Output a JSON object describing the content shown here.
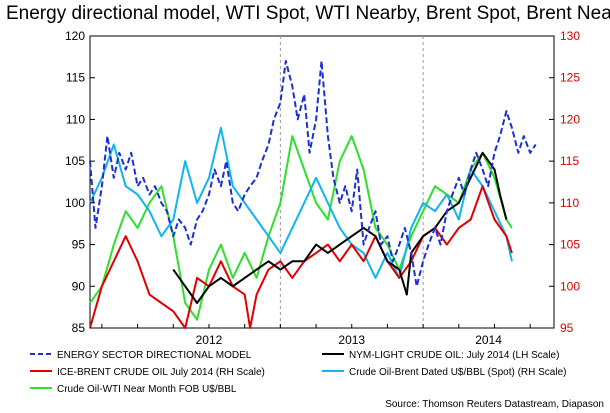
{
  "chart_data": {
    "type": "line",
    "title": "Energy directional model, WTI Spot, WTI Nearby, Brent Spot, Brent Nearby",
    "source": "Source: Thomson Reuters Datastream, Diapason",
    "grid": false,
    "legend_position": "bottom",
    "x_tick_labels": [
      "2012",
      "2013",
      "2014"
    ],
    "y_left": {
      "min": 85,
      "max": 120,
      "ticks": [
        "85",
        "90",
        "95",
        "100",
        "105",
        "110",
        "115",
        "120"
      ],
      "color": "#000000"
    },
    "y_right": {
      "min": 95,
      "max": 130,
      "ticks": [
        "95",
        "100",
        "105",
        "110",
        "115",
        "120",
        "125",
        "130"
      ],
      "color": "#e00000"
    },
    "x_range": [
      "2011-09",
      "2014-12"
    ],
    "series": [
      {
        "name": "ENERGY SECTOR DIRECTIONAL MODEL",
        "axis": "left",
        "color": "#1a2fd6",
        "dash": true,
        "width": 2,
        "points": [
          [
            "2011-09",
            105
          ],
          [
            "2011-09-15",
            97
          ],
          [
            "2011-10",
            102
          ],
          [
            "2011-10-15",
            108
          ],
          [
            "2011-11",
            103
          ],
          [
            "2011-11-15",
            106
          ],
          [
            "2011-12",
            104
          ],
          [
            "2011-12-15",
            106
          ],
          [
            "2012-01",
            102
          ],
          [
            "2012-01-15",
            103
          ],
          [
            "2012-02",
            101
          ],
          [
            "2012-02-15",
            102
          ],
          [
            "2012-03",
            100
          ],
          [
            "2012-03-15",
            99
          ],
          [
            "2012-04",
            96
          ],
          [
            "2012-04-15",
            98
          ],
          [
            "2012-05",
            97
          ],
          [
            "2012-05-15",
            95
          ],
          [
            "2012-06",
            98
          ],
          [
            "2012-06-15",
            99
          ],
          [
            "2012-07",
            101
          ],
          [
            "2012-07-15",
            104
          ],
          [
            "2012-08",
            102
          ],
          [
            "2012-08-15",
            105
          ],
          [
            "2012-09",
            100
          ],
          [
            "2012-09-15",
            99
          ],
          [
            "2012-10",
            101
          ],
          [
            "2012-10-15",
            102
          ],
          [
            "2012-11",
            103
          ],
          [
            "2012-11-15",
            105
          ],
          [
            "2012-12",
            107
          ],
          [
            "2012-12-15",
            110
          ],
          [
            "2013-01",
            112
          ],
          [
            "2013-01-15",
            117
          ],
          [
            "2013-02",
            114
          ],
          [
            "2013-02-15",
            110
          ],
          [
            "2013-03",
            113
          ],
          [
            "2013-03-15",
            106
          ],
          [
            "2013-04",
            110
          ],
          [
            "2013-04-15",
            117
          ],
          [
            "2013-05",
            108
          ],
          [
            "2013-05-15",
            103
          ],
          [
            "2013-06",
            100
          ],
          [
            "2013-06-15",
            102
          ],
          [
            "2013-07",
            99
          ],
          [
            "2013-07-15",
            104
          ],
          [
            "2013-08",
            95
          ],
          [
            "2013-08-15",
            97
          ],
          [
            "2013-09",
            99
          ],
          [
            "2013-09-15",
            95
          ],
          [
            "2013-10",
            96
          ],
          [
            "2013-10-15",
            93
          ],
          [
            "2013-11",
            95
          ],
          [
            "2013-11-15",
            97
          ],
          [
            "2013-12",
            94
          ],
          [
            "2013-12-15",
            90
          ],
          [
            "2014-01",
            93
          ],
          [
            "2014-01-15",
            95
          ],
          [
            "2014-02",
            97
          ],
          [
            "2014-02-15",
            95
          ],
          [
            "2014-03",
            99
          ],
          [
            "2014-03-15",
            101
          ],
          [
            "2014-04",
            103
          ],
          [
            "2014-04-15",
            101
          ],
          [
            "2014-05",
            104
          ],
          [
            "2014-05-15",
            106
          ],
          [
            "2014-06",
            104
          ],
          [
            "2014-06-15",
            102
          ],
          [
            "2014-07",
            106
          ],
          [
            "2014-07-15",
            108
          ],
          [
            "2014-08",
            111
          ],
          [
            "2014-08-15",
            109
          ],
          [
            "2014-09",
            106
          ],
          [
            "2014-09-15",
            108
          ],
          [
            "2014-10",
            106
          ],
          [
            "2014-10-15",
            107
          ]
        ]
      },
      {
        "name": "NYM-LIGHT CRUDE OIL: July 2014 (LH Scale)",
        "axis": "left",
        "color": "#000000",
        "dash": false,
        "width": 2,
        "points": [
          [
            "2012-04",
            92
          ],
          [
            "2012-05",
            90
          ],
          [
            "2012-06",
            88
          ],
          [
            "2012-07",
            90
          ],
          [
            "2012-08",
            91
          ],
          [
            "2012-09",
            90
          ],
          [
            "2012-10",
            91
          ],
          [
            "2012-11",
            92
          ],
          [
            "2012-12",
            93
          ],
          [
            "2013-01",
            92
          ],
          [
            "2013-02",
            93
          ],
          [
            "2013-03",
            93
          ],
          [
            "2013-04",
            95
          ],
          [
            "2013-05",
            94
          ],
          [
            "2013-06",
            95
          ],
          [
            "2013-07",
            96
          ],
          [
            "2013-08",
            97
          ],
          [
            "2013-09",
            96
          ],
          [
            "2013-10",
            93
          ],
          [
            "2013-11",
            92
          ],
          [
            "2013-11-20",
            89
          ],
          [
            "2013-12",
            94
          ],
          [
            "2014-01",
            96
          ],
          [
            "2014-02",
            97
          ],
          [
            "2014-03",
            99
          ],
          [
            "2014-04",
            100
          ],
          [
            "2014-05",
            103
          ],
          [
            "2014-06",
            106
          ],
          [
            "2014-07",
            104
          ],
          [
            "2014-07-15",
            101
          ],
          [
            "2014-08",
            98
          ]
        ]
      },
      {
        "name": "ICE-BRENT CRUDE OIL July 2014 (RH Scale)",
        "axis": "right",
        "color": "#e00000",
        "dash": false,
        "width": 2,
        "points": [
          [
            "2011-09",
            95
          ],
          [
            "2011-10",
            100
          ],
          [
            "2011-11",
            103
          ],
          [
            "2011-12",
            106
          ],
          [
            "2012-01",
            103
          ],
          [
            "2012-02",
            99
          ],
          [
            "2012-03",
            98
          ],
          [
            "2012-04",
            97
          ],
          [
            "2012-05",
            95
          ],
          [
            "2012-06",
            101
          ],
          [
            "2012-07",
            100
          ],
          [
            "2012-08",
            103
          ],
          [
            "2012-09",
            100
          ],
          [
            "2012-10",
            99
          ],
          [
            "2012-10-15",
            95
          ],
          [
            "2012-11",
            99
          ],
          [
            "2012-12",
            102
          ],
          [
            "2013-01",
            103
          ],
          [
            "2013-02",
            101
          ],
          [
            "2013-03",
            103
          ],
          [
            "2013-04",
            104
          ],
          [
            "2013-05",
            105
          ],
          [
            "2013-06",
            103
          ],
          [
            "2013-07",
            105
          ],
          [
            "2013-08",
            103
          ],
          [
            "2013-09",
            106
          ],
          [
            "2013-10",
            103
          ],
          [
            "2013-11",
            101
          ],
          [
            "2013-12",
            103
          ],
          [
            "2014-01",
            106
          ],
          [
            "2014-02",
            107
          ],
          [
            "2014-03",
            105
          ],
          [
            "2014-04",
            107
          ],
          [
            "2014-05",
            108
          ],
          [
            "2014-06",
            112
          ],
          [
            "2014-07",
            108
          ],
          [
            "2014-08",
            106
          ],
          [
            "2014-08-15",
            104
          ]
        ]
      },
      {
        "name": "Crude Oil-Brent Dated U$/BBL (Spot) (RH Scale)",
        "axis": "right",
        "color": "#10b4f0",
        "dash": false,
        "width": 2,
        "points": [
          [
            "2011-09",
            110
          ],
          [
            "2011-10",
            113
          ],
          [
            "2011-11",
            117
          ],
          [
            "2011-12",
            112
          ],
          [
            "2012-01",
            111
          ],
          [
            "2012-02",
            109
          ],
          [
            "2012-03",
            106
          ],
          [
            "2012-04",
            108
          ],
          [
            "2012-05",
            115
          ],
          [
            "2012-06",
            110
          ],
          [
            "2012-07",
            113
          ],
          [
            "2012-08",
            119
          ],
          [
            "2012-09",
            112
          ],
          [
            "2012-10",
            110
          ],
          [
            "2012-11",
            108
          ],
          [
            "2012-12",
            106
          ],
          [
            "2013-01",
            104
          ],
          [
            "2013-02",
            107
          ],
          [
            "2013-03",
            110
          ],
          [
            "2013-04",
            113
          ],
          [
            "2013-05",
            110
          ],
          [
            "2013-06",
            107
          ],
          [
            "2013-07",
            105
          ],
          [
            "2013-08",
            104
          ],
          [
            "2013-09",
            101
          ],
          [
            "2013-10",
            104
          ],
          [
            "2013-11",
            101
          ],
          [
            "2013-12",
            107
          ],
          [
            "2014-01",
            110
          ],
          [
            "2014-02",
            109
          ],
          [
            "2014-03",
            111
          ],
          [
            "2014-04",
            108
          ],
          [
            "2014-05",
            114
          ],
          [
            "2014-06",
            112
          ],
          [
            "2014-07",
            109
          ],
          [
            "2014-08",
            106
          ],
          [
            "2014-08-15",
            103
          ]
        ]
      },
      {
        "name": "Crude Oil-WTI Near Month FOB U$/BBL",
        "axis": "left",
        "color": "#2ee02e",
        "dash": false,
        "width": 2,
        "points": [
          [
            "2011-09",
            88
          ],
          [
            "2011-10",
            90
          ],
          [
            "2011-11",
            95
          ],
          [
            "2011-12",
            99
          ],
          [
            "2012-01",
            97
          ],
          [
            "2012-02",
            100
          ],
          [
            "2012-03",
            102
          ],
          [
            "2012-04",
            96
          ],
          [
            "2012-05",
            88
          ],
          [
            "2012-06",
            86
          ],
          [
            "2012-07",
            92
          ],
          [
            "2012-08",
            95
          ],
          [
            "2012-09",
            91
          ],
          [
            "2012-10",
            94
          ],
          [
            "2012-11",
            91
          ],
          [
            "2012-12",
            96
          ],
          [
            "2013-01",
            100
          ],
          [
            "2013-02",
            108
          ],
          [
            "2013-03",
            104
          ],
          [
            "2013-04",
            100
          ],
          [
            "2013-05",
            98
          ],
          [
            "2013-06",
            105
          ],
          [
            "2013-07",
            108
          ],
          [
            "2013-08",
            104
          ],
          [
            "2013-09",
            97
          ],
          [
            "2013-10",
            95
          ],
          [
            "2013-11",
            92
          ],
          [
            "2013-12",
            96
          ],
          [
            "2014-01",
            99
          ],
          [
            "2014-02",
            102
          ],
          [
            "2014-03",
            101
          ],
          [
            "2014-04",
            100
          ],
          [
            "2014-05",
            104
          ],
          [
            "2014-06",
            106
          ],
          [
            "2014-07",
            103
          ],
          [
            "2014-08",
            98
          ],
          [
            "2014-08-15",
            97
          ]
        ]
      }
    ]
  }
}
